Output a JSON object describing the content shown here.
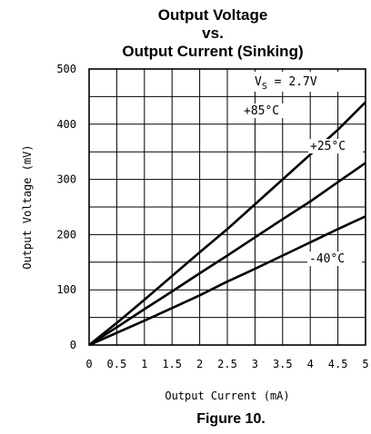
{
  "chart_data": {
    "type": "line",
    "title_lines": [
      "Output Voltage",
      "vs.",
      "Output Current (Sinking)"
    ],
    "xlabel": "Output Current (mA)",
    "ylabel": "Output Voltage (mV)",
    "xlim": [
      0,
      5
    ],
    "ylim": [
      0,
      500
    ],
    "x_ticks": [
      "0",
      "0.5",
      "1",
      "1.5",
      "2",
      "2.5",
      "3",
      "3.5",
      "4",
      "4.5",
      "5"
    ],
    "y_ticks": [
      "0",
      "100",
      "200",
      "300",
      "400",
      "500"
    ],
    "grid": true,
    "condition": {
      "prefix": "V",
      "subscript": "S",
      "suffix": " = 2.7V"
    },
    "series": [
      {
        "name": "+85°C",
        "x": [
          0,
          0.5,
          1,
          1.5,
          2,
          2.5,
          3,
          3.5,
          4,
          4.5,
          5
        ],
        "y": [
          0,
          40,
          82,
          125,
          168,
          210,
          255,
          300,
          345,
          390,
          440
        ]
      },
      {
        "name": "+25°C",
        "x": [
          0,
          0.5,
          1,
          1.5,
          2,
          2.5,
          3,
          3.5,
          4,
          4.5,
          5
        ],
        "y": [
          0,
          32,
          65,
          97,
          130,
          162,
          195,
          228,
          260,
          295,
          330
        ]
      },
      {
        "name": "-40°C",
        "x": [
          0,
          0.5,
          1,
          1.5,
          2,
          2.5,
          3,
          3.5,
          4,
          4.5,
          5
        ],
        "y": [
          0,
          22,
          44,
          67,
          90,
          115,
          138,
          162,
          186,
          210,
          233
        ]
      }
    ]
  },
  "caption": "Figure 10."
}
